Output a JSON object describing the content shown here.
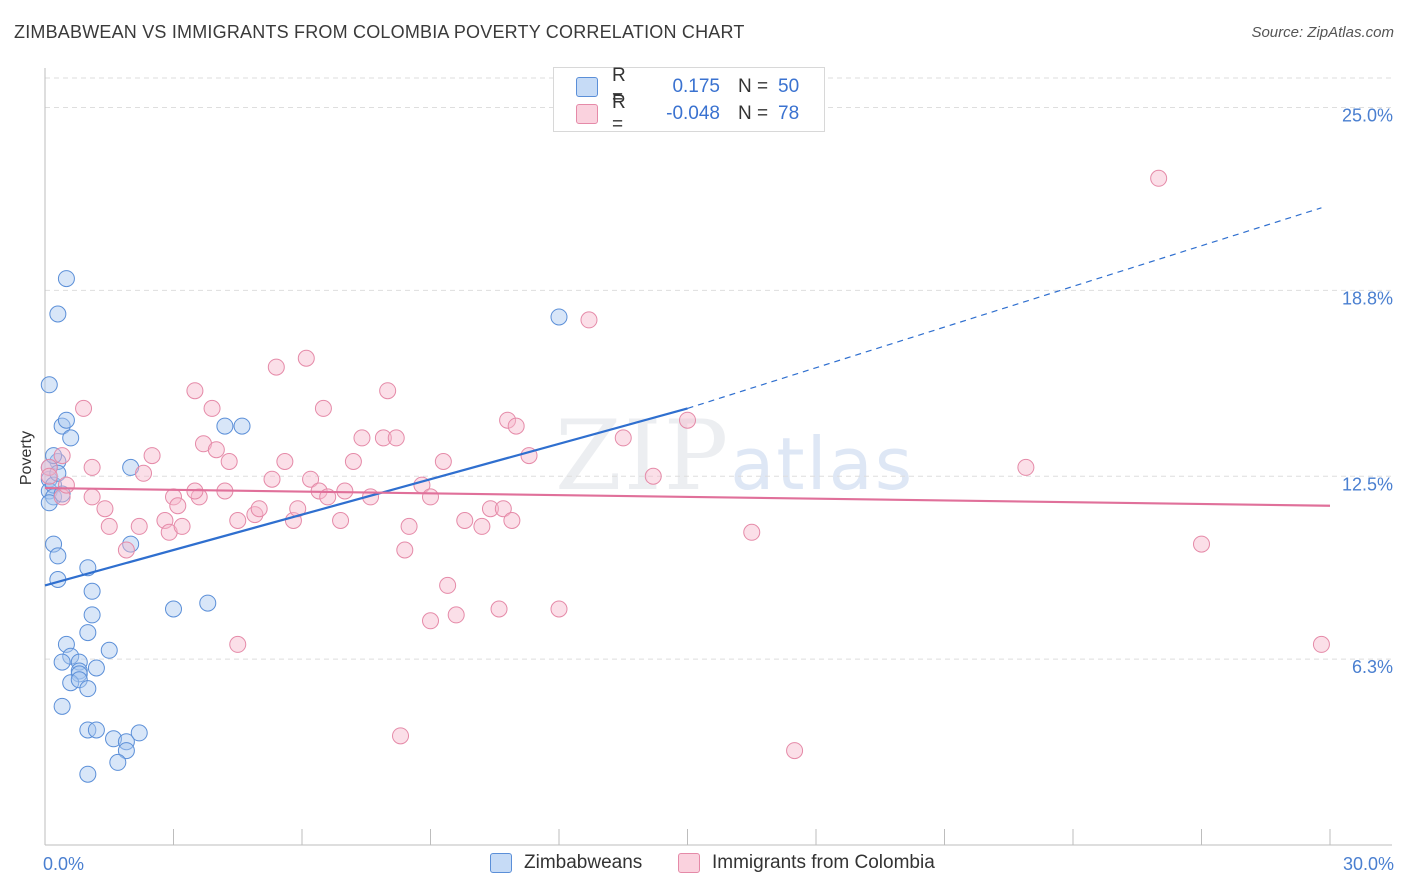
{
  "title": "ZIMBABWEAN VS IMMIGRANTS FROM COLOMBIA POVERTY CORRELATION CHART",
  "source": "Source: ZipAtlas.com",
  "watermark": {
    "zip": "ZIP",
    "atlas": "atlas"
  },
  "legend": {
    "rows": [
      {
        "r_label": "R =",
        "r_value": "0.175",
        "n_label": "N =",
        "n_value": "50",
        "color": "#a9c8f0"
      },
      {
        "r_label": "R =",
        "r_value": "-0.048",
        "n_label": "N =",
        "n_value": "78",
        "color": "#f7b8cb"
      }
    ]
  },
  "bottom_legend": {
    "zimbabweans": "Zimbabweans",
    "colombia": "Immigrants from Colombia"
  },
  "colors": {
    "blue_fill": "#a9c8f0",
    "blue_stroke": "#5b8fd8",
    "blue_line": "#2f6fcf",
    "pink_fill": "#f7b8cb",
    "pink_stroke": "#e58aa8",
    "pink_line": "#e0709a",
    "axis_label": "#4a7fd0",
    "grid": "#dedede"
  },
  "chart_data": {
    "type": "scatter",
    "title": "ZIMBABWEAN VS IMMIGRANTS FROM COLOMBIA POVERTY CORRELATION CHART",
    "xlabel": "",
    "ylabel": "Poverty",
    "xlim": [
      0,
      30
    ],
    "ylim": [
      0,
      26
    ],
    "x_tick_labels": [
      {
        "value": 0,
        "label": "0.0%"
      },
      {
        "value": 30,
        "label": "30.0%"
      }
    ],
    "y_ticks": [
      {
        "value": 6.3,
        "label": "6.3%"
      },
      {
        "value": 12.5,
        "label": "12.5%"
      },
      {
        "value": 18.8,
        "label": "18.8%"
      },
      {
        "value": 25.0,
        "label": "25.0%"
      }
    ],
    "series": [
      {
        "name": "Zimbabweans",
        "trend": {
          "x0": 0,
          "y0": 8.8,
          "x1": 15.0,
          "y1": 14.8,
          "dash_x1": 29.8,
          "dash_y1": 21.6
        },
        "points": [
          [
            0.1,
            15.6
          ],
          [
            0.3,
            18.0
          ],
          [
            0.5,
            19.2
          ],
          [
            0.1,
            12.4
          ],
          [
            0.1,
            12.0
          ],
          [
            0.2,
            12.2
          ],
          [
            0.2,
            11.8
          ],
          [
            0.4,
            14.2
          ],
          [
            0.6,
            13.8
          ],
          [
            0.5,
            14.4
          ],
          [
            0.3,
            13.0
          ],
          [
            0.2,
            10.2
          ],
          [
            0.3,
            9.8
          ],
          [
            0.3,
            9.0
          ],
          [
            1.0,
            9.4
          ],
          [
            1.1,
            8.6
          ],
          [
            1.1,
            7.8
          ],
          [
            1.0,
            7.2
          ],
          [
            0.5,
            6.8
          ],
          [
            0.6,
            6.4
          ],
          [
            0.4,
            6.2
          ],
          [
            0.8,
            6.2
          ],
          [
            0.8,
            5.9
          ],
          [
            0.8,
            5.8
          ],
          [
            1.2,
            6.0
          ],
          [
            1.5,
            6.6
          ],
          [
            0.6,
            5.5
          ],
          [
            0.8,
            5.6
          ],
          [
            1.0,
            5.3
          ],
          [
            0.4,
            4.7
          ],
          [
            1.0,
            3.9
          ],
          [
            1.2,
            3.9
          ],
          [
            1.6,
            3.6
          ],
          [
            1.9,
            3.5
          ],
          [
            2.2,
            3.8
          ],
          [
            1.9,
            3.2
          ],
          [
            1.7,
            2.8
          ],
          [
            1.0,
            2.4
          ],
          [
            2.0,
            10.2
          ],
          [
            3.0,
            8.0
          ],
          [
            3.8,
            8.2
          ],
          [
            4.2,
            14.2
          ],
          [
            4.6,
            14.2
          ],
          [
            12.0,
            17.9
          ],
          [
            0.1,
            12.8
          ],
          [
            0.2,
            13.2
          ],
          [
            0.3,
            12.6
          ],
          [
            2.0,
            12.8
          ],
          [
            0.4,
            11.9
          ],
          [
            0.1,
            11.6
          ]
        ]
      },
      {
        "name": "Immigrants from Colombia",
        "trend": {
          "x0": 0,
          "y0": 12.1,
          "x1": 30.0,
          "y1": 11.5
        },
        "points": [
          [
            0.1,
            12.8
          ],
          [
            0.4,
            13.2
          ],
          [
            0.4,
            11.8
          ],
          [
            0.5,
            12.2
          ],
          [
            0.9,
            14.8
          ],
          [
            1.1,
            12.8
          ],
          [
            1.1,
            11.8
          ],
          [
            1.4,
            11.4
          ],
          [
            1.5,
            10.8
          ],
          [
            1.9,
            10.0
          ],
          [
            2.2,
            10.8
          ],
          [
            2.3,
            12.6
          ],
          [
            2.5,
            13.2
          ],
          [
            2.8,
            11.0
          ],
          [
            2.9,
            10.6
          ],
          [
            3.0,
            11.8
          ],
          [
            3.1,
            11.5
          ],
          [
            3.2,
            10.8
          ],
          [
            3.5,
            15.4
          ],
          [
            3.6,
            11.8
          ],
          [
            3.7,
            13.6
          ],
          [
            3.9,
            14.8
          ],
          [
            4.2,
            12.0
          ],
          [
            4.0,
            13.4
          ],
          [
            4.3,
            13.0
          ],
          [
            4.5,
            11.0
          ],
          [
            4.9,
            11.2
          ],
          [
            5.0,
            11.4
          ],
          [
            5.3,
            12.4
          ],
          [
            5.4,
            16.2
          ],
          [
            5.6,
            13.0
          ],
          [
            5.8,
            11.0
          ],
          [
            5.9,
            11.4
          ],
          [
            6.1,
            16.5
          ],
          [
            6.2,
            12.4
          ],
          [
            6.4,
            12.0
          ],
          [
            6.5,
            14.8
          ],
          [
            6.6,
            11.8
          ],
          [
            6.9,
            11.0
          ],
          [
            7.0,
            12.0
          ],
          [
            7.2,
            13.0
          ],
          [
            7.4,
            13.8
          ],
          [
            7.6,
            11.8
          ],
          [
            7.9,
            13.8
          ],
          [
            8.0,
            15.4
          ],
          [
            8.2,
            13.8
          ],
          [
            8.4,
            10.0
          ],
          [
            8.5,
            10.8
          ],
          [
            8.8,
            12.2
          ],
          [
            9.0,
            11.8
          ],
          [
            9.3,
            13.0
          ],
          [
            9.4,
            8.8
          ],
          [
            9.6,
            7.8
          ],
          [
            9.8,
            11.0
          ],
          [
            10.2,
            10.8
          ],
          [
            10.4,
            11.4
          ],
          [
            10.7,
            11.4
          ],
          [
            10.8,
            14.4
          ],
          [
            11.0,
            14.2
          ],
          [
            10.9,
            11.0
          ],
          [
            11.3,
            13.2
          ],
          [
            10.6,
            8.0
          ],
          [
            12.0,
            8.0
          ],
          [
            12.7,
            17.8
          ],
          [
            13.5,
            13.8
          ],
          [
            14.2,
            12.5
          ],
          [
            15.0,
            14.4
          ],
          [
            16.5,
            10.6
          ],
          [
            17.5,
            3.2
          ],
          [
            22.9,
            12.8
          ],
          [
            26.0,
            22.6
          ],
          [
            27.0,
            10.2
          ],
          [
            29.8,
            6.8
          ],
          [
            8.3,
            3.7
          ],
          [
            9.0,
            7.6
          ],
          [
            4.5,
            6.8
          ],
          [
            3.5,
            12.0
          ],
          [
            0.1,
            12.5
          ]
        ]
      }
    ]
  }
}
